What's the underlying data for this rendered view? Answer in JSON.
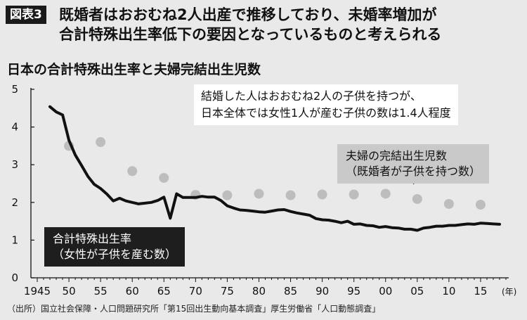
{
  "header": {
    "figure_label": "図表3",
    "title_line1": "既婚者はおおむね2人出産で推移しており、未婚率増加が",
    "title_line2": "合計特殊出生率低下の要因となっているものと考えられる"
  },
  "source_note": "（出所）国立社会保障・人口問題研究所「第15回出生動向基本調査」厚生労働省「人口動態調査」",
  "callout": {
    "line1": "結婚した人はおおむね2人の子供を持つが、",
    "line2": "日本全体では女性1人が産む子供の数は1.4人程度"
  },
  "chart_data": {
    "type": "line",
    "title": "日本の合計特殊出生率と夫婦完結出生児数",
    "xlabel": "",
    "ylabel": "",
    "x_unit": "(年)",
    "xlim": [
      1944,
      2019
    ],
    "ylim": [
      0,
      5
    ],
    "y_ticks": [
      0,
      1,
      2,
      3,
      4,
      5
    ],
    "x_ticks": [
      1945,
      1950,
      1955,
      1960,
      1965,
      1970,
      1975,
      1980,
      1985,
      1990,
      1995,
      2000,
      2005,
      2010,
      2015
    ],
    "x_tick_labels": [
      "1945",
      "50",
      "55",
      "60",
      "65",
      "70",
      "75",
      "80",
      "85",
      "90",
      "95",
      "00",
      "05",
      "10",
      "15"
    ],
    "grid": false,
    "series": [
      {
        "name_line1": "合計特殊出生率",
        "name_line2": "（女性が子供を産む数）",
        "style": "line",
        "color": "#111111",
        "x": [
          1947,
          1948,
          1949,
          1950,
          1951,
          1952,
          1953,
          1954,
          1955,
          1956,
          1957,
          1958,
          1959,
          1960,
          1961,
          1962,
          1963,
          1964,
          1965,
          1966,
          1967,
          1968,
          1969,
          1970,
          1971,
          1972,
          1973,
          1974,
          1975,
          1976,
          1977,
          1978,
          1979,
          1980,
          1981,
          1982,
          1983,
          1984,
          1985,
          1986,
          1987,
          1988,
          1989,
          1990,
          1991,
          1992,
          1993,
          1994,
          1995,
          1996,
          1997,
          1998,
          1999,
          2000,
          2001,
          2002,
          2003,
          2004,
          2005,
          2006,
          2007,
          2008,
          2009,
          2010,
          2011,
          2012,
          2013,
          2014,
          2015,
          2016,
          2017,
          2018
        ],
        "y": [
          4.54,
          4.4,
          4.32,
          3.65,
          3.26,
          2.98,
          2.69,
          2.48,
          2.37,
          2.22,
          2.04,
          2.11,
          2.04,
          2.0,
          1.96,
          1.98,
          2.0,
          2.05,
          2.14,
          1.58,
          2.23,
          2.13,
          2.13,
          2.13,
          2.16,
          2.14,
          2.14,
          2.05,
          1.91,
          1.85,
          1.8,
          1.79,
          1.77,
          1.75,
          1.74,
          1.77,
          1.8,
          1.81,
          1.76,
          1.72,
          1.69,
          1.66,
          1.57,
          1.54,
          1.53,
          1.5,
          1.46,
          1.5,
          1.42,
          1.43,
          1.39,
          1.38,
          1.34,
          1.36,
          1.33,
          1.32,
          1.29,
          1.29,
          1.26,
          1.32,
          1.34,
          1.37,
          1.37,
          1.39,
          1.39,
          1.41,
          1.43,
          1.42,
          1.45,
          1.44,
          1.43,
          1.42
        ]
      },
      {
        "name_line1": "夫婦の完結出生児数",
        "name_line2": "（既婚者が子供を持つ数）",
        "style": "dots",
        "color": "#bdbdbd",
        "x": [
          1950,
          1955,
          1960,
          1965,
          1970,
          1975,
          1980,
          1985,
          1990,
          1995,
          2000,
          2005,
          2010,
          2015
        ],
        "y": [
          3.5,
          3.6,
          2.83,
          2.65,
          2.2,
          2.19,
          2.23,
          2.19,
          2.21,
          2.21,
          2.23,
          2.09,
          1.96,
          1.94
        ]
      }
    ]
  }
}
